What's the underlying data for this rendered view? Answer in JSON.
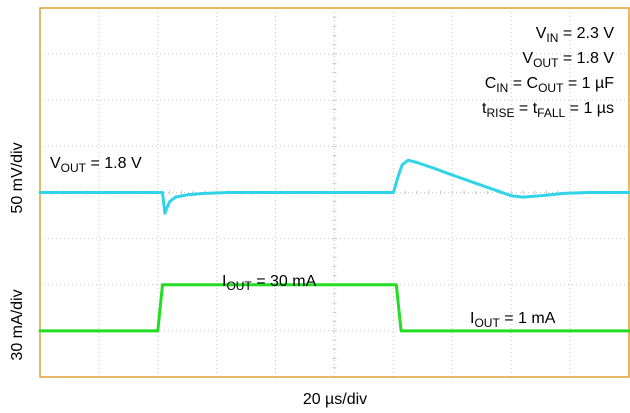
{
  "chart_data": {
    "type": "line",
    "title": "",
    "xlabel": "20 µs/div",
    "ylabel_top": "50 mV/div",
    "ylabel_bottom": "30 mA/div",
    "divisions": {
      "x": 10,
      "y": 8
    },
    "grid": true,
    "colors": {
      "frame": "#e0a030",
      "grid": "#c8c8c8",
      "vout_trace": "#30d4e8",
      "iout_trace": "#22dd22"
    },
    "conditions": {
      "vin": {
        "sym": "V",
        "sub": "IN",
        "rest": " = 2.3 V"
      },
      "vout": {
        "sym": "V",
        "sub": "OUT",
        "rest": " = 1.8 V"
      },
      "cap": {
        "a": "C",
        "a_sub": "IN",
        "mid": " = C",
        "b_sub": "OUT",
        "rest": " = 1 µF"
      },
      "rise": {
        "a": "t",
        "a_sub": "RISE",
        "mid": " = t",
        "b_sub": "FALL",
        "rest": " = 1 µs"
      }
    },
    "annotations": {
      "vout_trace": {
        "sym": "V",
        "sub": "OUT",
        "rest": " = 1.8 V"
      },
      "iout_high": {
        "sym": "I",
        "sub": "OUT",
        "rest": " = 30 mA"
      },
      "iout_low": {
        "sym": "I",
        "sub": "OUT",
        "rest": " = 1 mA"
      }
    },
    "series": [
      {
        "key": "vout",
        "x_div": [
          0,
          2.08,
          2.12,
          2.15,
          2.2,
          2.3,
          2.5,
          2.8,
          3.2,
          3.6,
          4.0,
          6.0,
          6.08,
          6.15,
          6.25,
          6.4,
          6.7,
          7.0,
          7.4,
          7.8,
          8.0,
          8.2,
          8.5,
          8.9,
          9.3,
          10
        ],
        "y_div": [
          4.0,
          4.0,
          3.55,
          3.65,
          3.8,
          3.9,
          3.95,
          3.98,
          4.0,
          4.0,
          4.0,
          4.0,
          4.35,
          4.6,
          4.7,
          4.65,
          4.52,
          4.38,
          4.2,
          4.02,
          3.93,
          3.9,
          3.93,
          3.98,
          4.0,
          4.0
        ]
      },
      {
        "key": "iout",
        "x_div": [
          0,
          2.0,
          2.08,
          6.05,
          6.13,
          10
        ],
        "y_div": [
          1.0,
          1.0,
          2.0,
          2.0,
          1.0,
          1.0
        ]
      }
    ]
  }
}
